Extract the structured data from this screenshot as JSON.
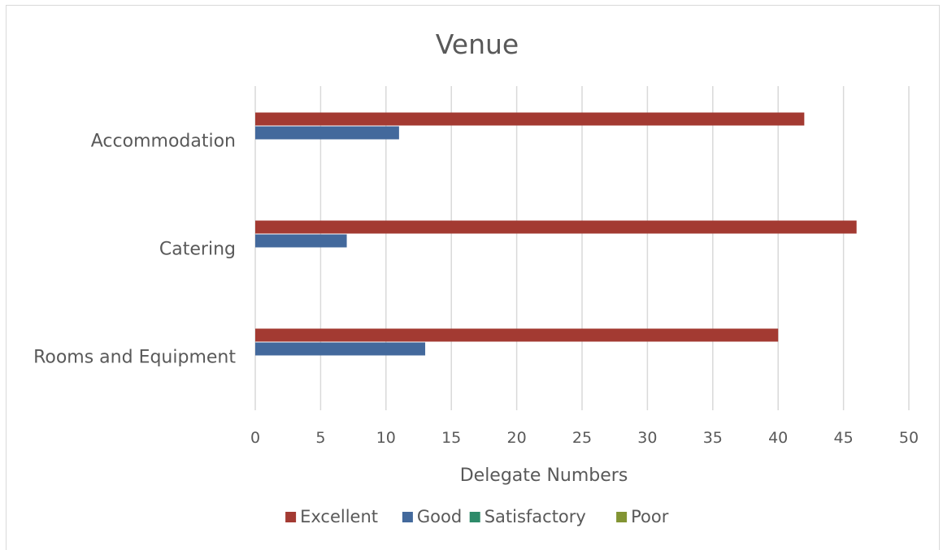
{
  "chart_data": {
    "type": "bar",
    "orientation": "horizontal",
    "title": "Venue",
    "xlabel": "Delegate Numbers",
    "ylabel": "",
    "categories": [
      "Rooms and Equipment",
      "Catering",
      "Accommodation"
    ],
    "xlim": [
      0,
      50
    ],
    "xticks": [
      0,
      5,
      10,
      15,
      20,
      25,
      30,
      35,
      40,
      45,
      50
    ],
    "grid": true,
    "legend_position": "bottom",
    "series": [
      {
        "name": "Excellent",
        "color": "#a33a32",
        "values": [
          40,
          46,
          42
        ]
      },
      {
        "name": "Good",
        "color": "#43699c",
        "values": [
          13,
          7,
          11
        ]
      },
      {
        "name": "Satisfactory",
        "color": "#2e8b6a",
        "values": [
          0,
          0,
          0
        ]
      },
      {
        "name": "Poor",
        "color": "#829433",
        "values": [
          0,
          0,
          0
        ]
      }
    ]
  }
}
